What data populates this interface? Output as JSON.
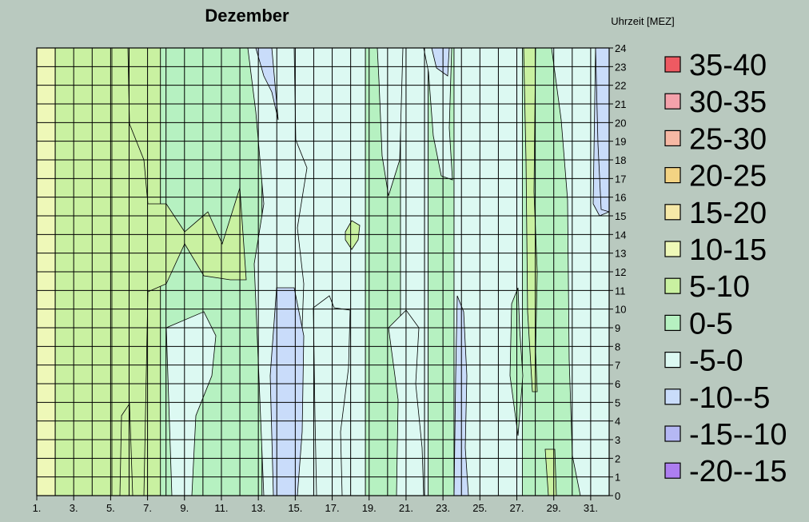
{
  "chart_data": {
    "type": "heatmap",
    "title": "Dezember",
    "ylabel": "Uhrzeit  [MEZ]",
    "x_tick_labels": [
      "1.",
      "3.",
      "5.",
      "7.",
      "9.",
      "11.",
      "13.",
      "15.",
      "17.",
      "19.",
      "21.",
      "23.",
      "25.",
      "27.",
      "29.",
      "31."
    ],
    "y_tick_labels": [
      "0",
      "1",
      "2",
      "3",
      "4",
      "5",
      "6",
      "7",
      "8",
      "9",
      "10",
      "11",
      "12",
      "13",
      "14",
      "15",
      "16",
      "17",
      "18",
      "19",
      "20",
      "21",
      "22",
      "23",
      "24"
    ],
    "xlim": [
      1,
      32
    ],
    "ylim": [
      0,
      24
    ],
    "grid": true,
    "legend_position": "right",
    "bands": [
      {
        "label": "35-40",
        "color": "#ee5a62"
      },
      {
        "label": "30-35",
        "color": "#f4a2ab"
      },
      {
        "label": "25-30",
        "color": "#f6b8a4"
      },
      {
        "label": "20-25",
        "color": "#f3d383"
      },
      {
        "label": "15-20",
        "color": "#f6e9a8"
      },
      {
        "label": "10-15",
        "color": "#eef8b8"
      },
      {
        "label": "5-10",
        "color": "#c9f1a1"
      },
      {
        "label": "0-5",
        "color": "#b6f1c1"
      },
      {
        "label": "-5-0",
        "color": "#dcf9f2"
      },
      {
        "label": "-10--5",
        "color": "#c9dcfa"
      },
      {
        "label": "-15--10",
        "color": "#b5b8f4"
      },
      {
        "label": "-20--15",
        "color": "#ad7ef0"
      }
    ],
    "day_columns": [
      {
        "from": 1,
        "to": 2,
        "band": "10-15"
      },
      {
        "from": 2,
        "to": 7.7,
        "band": "5-10"
      },
      {
        "from": 7.7,
        "to": 13.2,
        "band": "0-5"
      },
      {
        "from": 13.2,
        "to": 18.8,
        "band": "-5-0"
      },
      {
        "from": 18.8,
        "to": 20.7,
        "band": "0-5"
      },
      {
        "from": 20.7,
        "to": 22.2,
        "band": "-5-0"
      },
      {
        "from": 22.2,
        "to": 23.6,
        "band": "0-5"
      },
      {
        "from": 23.6,
        "to": 27.3,
        "band": "-5-0"
      },
      {
        "from": 27.3,
        "to": 30.9,
        "band": "0-5"
      },
      {
        "from": 30.9,
        "to": 32,
        "band": "-10--5"
      }
    ]
  }
}
